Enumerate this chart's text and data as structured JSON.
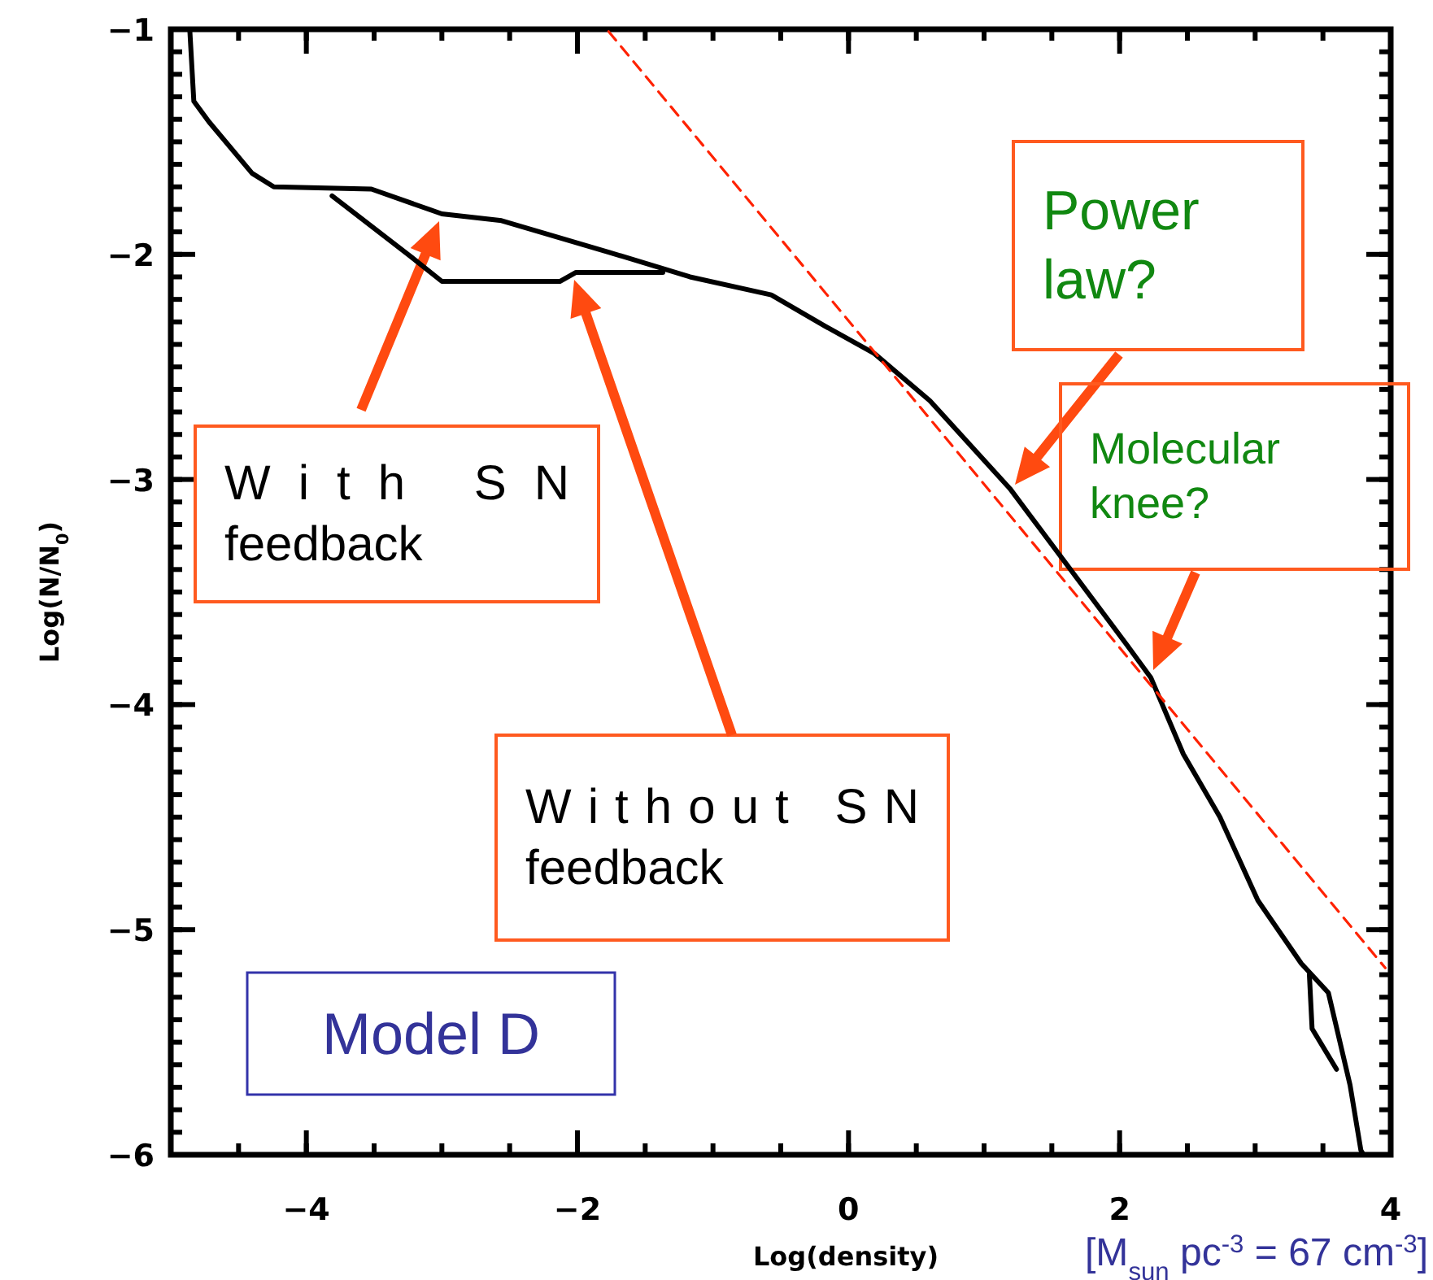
{
  "chart_data": {
    "type": "line",
    "xlabel": "Log(density)",
    "ylabel": "Log(N/N$_{0}$)",
    "xlim": [
      -5,
      4
    ],
    "xticks": [
      -4,
      -2,
      0,
      2,
      4
    ],
    "ylim": [
      -6,
      -1
    ],
    "yticks": [
      -6,
      -5,
      -4,
      -3,
      -2,
      -1
    ],
    "grid": false,
    "marker": "none",
    "series": [
      {
        "color": "#000000",
        "x": [
          -4.86,
          -4.83,
          -4.72,
          -4.4,
          -4.24,
          -3.52,
          -3.0,
          -2.56,
          -1.77,
          -1.17,
          -0.57,
          -0.17,
          0.19,
          0.6,
          1.19,
          2.06,
          2.23,
          2.47,
          2.74,
          3.02,
          3.34,
          3.54,
          3.7,
          3.78,
          3.8
        ],
        "values": [
          -1.0,
          -1.32,
          -1.41,
          -1.64,
          -1.7,
          -1.71,
          -1.82,
          -1.85,
          -1.99,
          -2.1,
          -2.18,
          -2.32,
          -2.44,
          -2.65,
          -3.04,
          -3.74,
          -3.88,
          -4.22,
          -4.5,
          -4.87,
          -5.15,
          -5.28,
          -5.69,
          -5.98,
          -6.0
        ]
      },
      {
        "color": "#000000",
        "x": [
          -3.81,
          -3.25,
          -3.0,
          -2.13,
          -2.01,
          -1.37,
          0,
          3.4,
          3.42,
          3.6
        ],
        "values": [
          -1.74,
          -2.0,
          -2.12,
          -2.12,
          -2.08,
          -2.08,
          null,
          -5.2,
          -5.44,
          -5.62
        ]
      },
      {
        "color": "#ff2200",
        "line_style": "dashed",
        "x": [
          -1.77,
          3.96
        ],
        "values": [
          -1.01,
          -5.17
        ]
      }
    ],
    "annotations": [
      "With SN feedback",
      "Without SN feedback",
      "Power law?",
      "Molecular knee?",
      "Model D",
      "[M$_{sun}$ pc$^{-3}$ = 67 cm$^{-3}$]"
    ]
  }
}
